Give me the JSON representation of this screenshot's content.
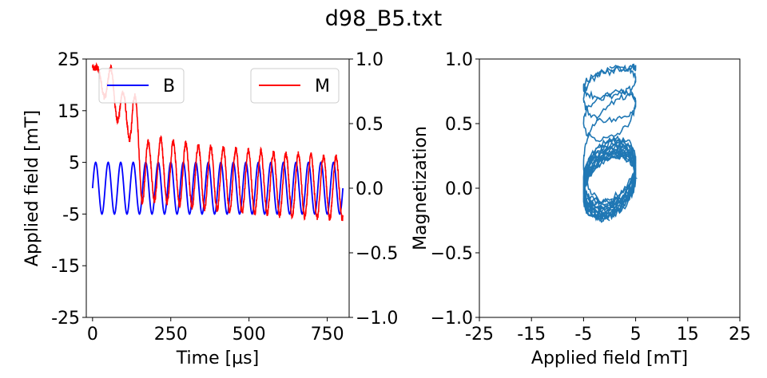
{
  "title": "d98_B5.txt",
  "colors": {
    "B": "#0000ff",
    "M": "#ff0000",
    "loop": "#1f77b4"
  },
  "chart_data": [
    {
      "type": "line",
      "xlabel": "Time [µs]",
      "ylabel": "Applied field [mT]",
      "xlim": [
        -20,
        820
      ],
      "ylim": [
        -25,
        25
      ],
      "y2lim": [
        -1.0,
        1.0
      ],
      "xticks": [
        0,
        250,
        500,
        750
      ],
      "xtick_labels": [
        "0",
        "250",
        "500",
        "750"
      ],
      "yticks": [
        -25,
        -15,
        -5,
        5,
        15,
        25
      ],
      "ytick_labels": [
        "-25",
        "-15",
        "-5",
        "5",
        "15",
        "25"
      ],
      "y2ticks": [
        -1.0,
        -0.5,
        0.0,
        0.5,
        1.0
      ],
      "y2tick_labels": [
        "−1.0",
        "−0.5",
        "0.0",
        "0.5",
        "1.0"
      ],
      "legend_placement": "top",
      "series": [
        {
          "name": "B",
          "axis": "left",
          "shape": "sine",
          "amplitude": 5,
          "period": 40,
          "t_start": 0,
          "t_end": 800
        },
        {
          "name": "M",
          "axis": "right",
          "shape": "decaying-oscillation",
          "description_points": [
            [
              0,
              1.0
            ],
            [
              20,
              0.82
            ],
            [
              60,
              0.8
            ],
            [
              100,
              0.55
            ],
            [
              130,
              0.6
            ],
            [
              160,
              0.1
            ],
            [
              200,
              0.15
            ],
            [
              300,
              0.1
            ],
            [
              500,
              0.05
            ],
            [
              800,
              0.0
            ]
          ],
          "oscillation_amplitude": 0.24,
          "period": 40,
          "t_start": 0,
          "t_end": 800
        }
      ]
    },
    {
      "type": "scatter",
      "xlabel": "Applied field [mT]",
      "ylabel": "Magnetization",
      "xlim": [
        -25,
        25
      ],
      "ylim": [
        -1.0,
        1.0
      ],
      "xticks": [
        -25,
        -15,
        -5,
        5,
        15,
        25
      ],
      "xtick_labels": [
        "-25",
        "-15",
        "-5",
        "5",
        "15",
        "25"
      ],
      "yticks": [
        -1.0,
        -0.5,
        0.0,
        0.5,
        1.0
      ],
      "ytick_labels": [
        "−1.0",
        "−0.5",
        "0.0",
        "0.5",
        "1.0"
      ],
      "series": [
        {
          "name": "",
          "shape": "hysteresis-loop",
          "x_range": [
            -5,
            5
          ],
          "y_range": [
            -0.38,
            1.0
          ]
        }
      ]
    }
  ]
}
